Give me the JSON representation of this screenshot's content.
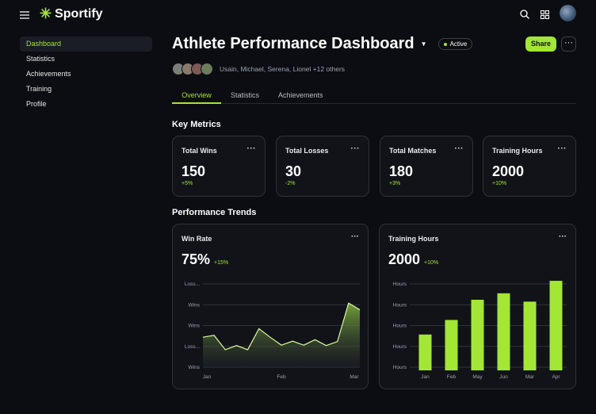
{
  "app": {
    "name": "Sportify"
  },
  "sidebar": {
    "items": [
      {
        "label": "Dashboard",
        "active": true
      },
      {
        "label": "Statistics"
      },
      {
        "label": "Achievements"
      },
      {
        "label": "Training"
      },
      {
        "label": "Profile"
      }
    ]
  },
  "header": {
    "title": "Athlete Performance Dashboard",
    "status": "Active",
    "share_label": "Share",
    "more_label": "···",
    "collaborators": "Usain, Michael, Serena, Lionel +12 others"
  },
  "tabs": [
    {
      "label": "Overview",
      "active": true
    },
    {
      "label": "Statistics"
    },
    {
      "label": "Achievements"
    }
  ],
  "key_metrics": {
    "heading": "Key Metrics",
    "cards": [
      {
        "label": "Total Wins",
        "value": "150",
        "change": "+5%"
      },
      {
        "label": "Total Losses",
        "value": "30",
        "change": "-2%"
      },
      {
        "label": "Total Matches",
        "value": "180",
        "change": "+3%"
      },
      {
        "label": "Training Hours",
        "value": "2000",
        "change": "+10%"
      }
    ]
  },
  "trends": {
    "heading": "Performance Trends"
  },
  "colors": {
    "accent": "#a3e635",
    "background": "#0b0d12",
    "card": "#111318"
  },
  "chart_data": [
    {
      "type": "area",
      "title": "Win Rate",
      "value": "75%",
      "change": "+15%",
      "y_tick_labels": [
        "Wins",
        "Loss...",
        "Wins",
        "Wins",
        "Loss..."
      ],
      "x_tick_labels": [
        "Jan",
        "Feb",
        "Mar"
      ],
      "ylim": [
        0,
        4
      ],
      "grid": true,
      "values": [
        1.44,
        1.53,
        0.84,
        1.04,
        0.84,
        1.85,
        1.44,
        1.06,
        1.25,
        1.06,
        1.32,
        1.04,
        1.23,
        3.08,
        2.76
      ]
    },
    {
      "type": "bar",
      "title": "Training Hours",
      "value": "2000",
      "change": "+10%",
      "y_tick_labels": [
        "Hours",
        "Hours",
        "Hours",
        "Hours",
        "Hours"
      ],
      "categories": [
        "Jan",
        "Feb",
        "May",
        "Jun",
        "Mar",
        "Apr"
      ],
      "values": [
        1.57,
        2.27,
        3.24,
        3.55,
        3.15,
        4.15
      ],
      "ylim": [
        0,
        4
      ],
      "grid": true
    }
  ]
}
